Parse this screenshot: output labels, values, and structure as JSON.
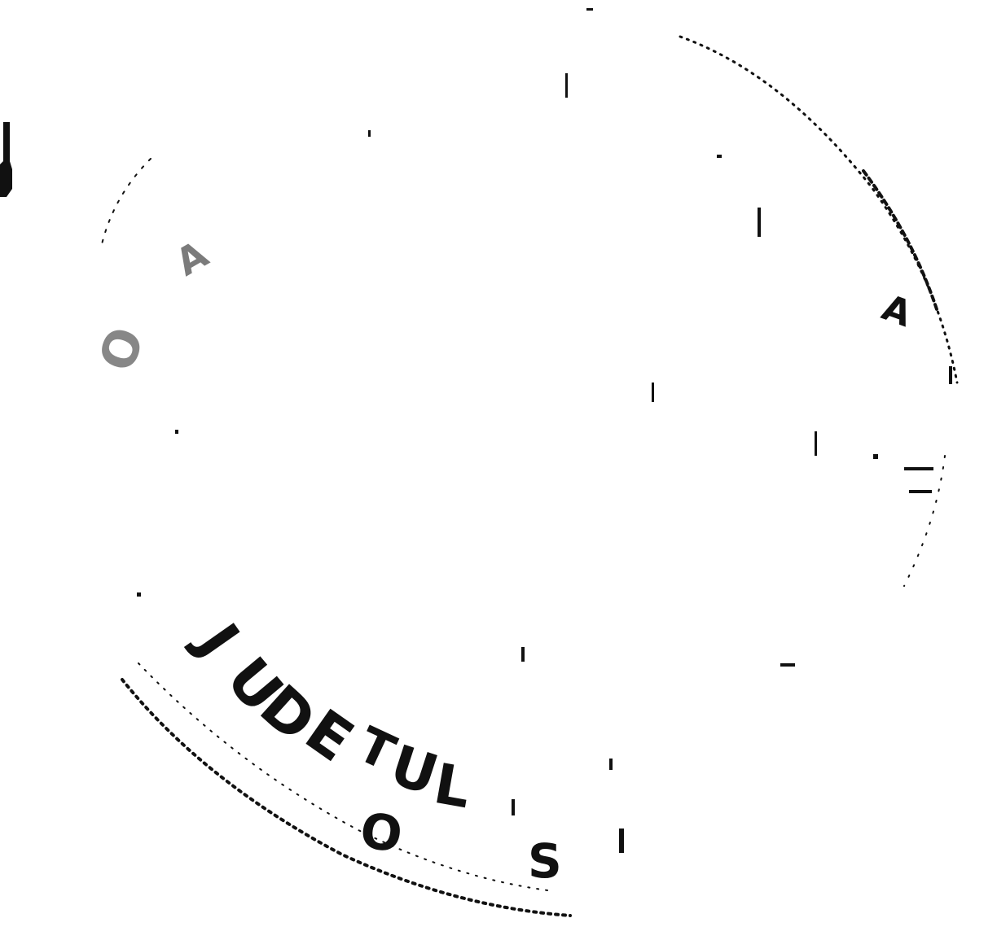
{
  "seal": {
    "ink_color": "#111111",
    "paper_color": "#ffffff",
    "lettering_bottom_arc": [
      "J",
      "U",
      "D",
      "E",
      "T",
      "U",
      "L"
    ],
    "lettering_bottom_row": [
      "O",
      "S"
    ],
    "lettering_left_fragments": [
      "A",
      "O"
    ],
    "lettering_right_fragments": [
      "A"
    ]
  }
}
